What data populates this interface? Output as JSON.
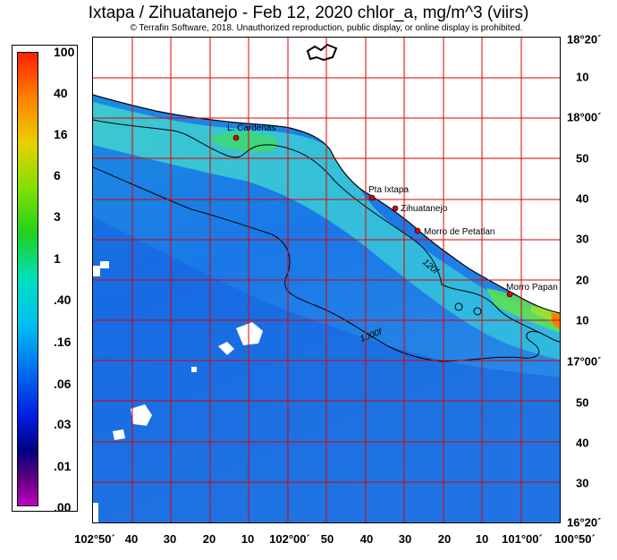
{
  "header": {
    "title": "Ixtapa / Zihuatanejo - Feb 12, 2020  chlor_a, mg/m^3 (viirs)",
    "copyright": "© Terrafin Software,  2018.  Unauthorized reproduction, public display, or online display is prohibited."
  },
  "legend": {
    "labels": [
      "100",
      "40",
      "16",
      "6",
      "3",
      "1",
      ".40",
      ".16",
      ".06",
      ".03",
      ".01",
      ".00"
    ]
  },
  "axes": {
    "bottom_ticks": [
      "102°50´",
      "40",
      "30",
      "20",
      "10",
      "102°00´",
      "50",
      "40",
      "30",
      "20",
      "10",
      "101°00´",
      "100°50´"
    ],
    "right_ticks": [
      "18°20´",
      "10",
      "18°00´",
      "50",
      "40",
      "30",
      "20",
      "10",
      "17°00´",
      "50",
      "40",
      "30",
      "16°20´"
    ]
  },
  "places": [
    {
      "name": "L. Cardenas"
    },
    {
      "name": "Pta Ixtapa"
    },
    {
      "name": "Zihuatanejo"
    },
    {
      "name": "Morro de Petatlan"
    },
    {
      "name": "Morro Papan"
    }
  ],
  "contours": [
    "120f",
    "1000f"
  ],
  "colors": {
    "grid": "#e00000",
    "marker": "#e00000",
    "land": "#ffffff"
  }
}
